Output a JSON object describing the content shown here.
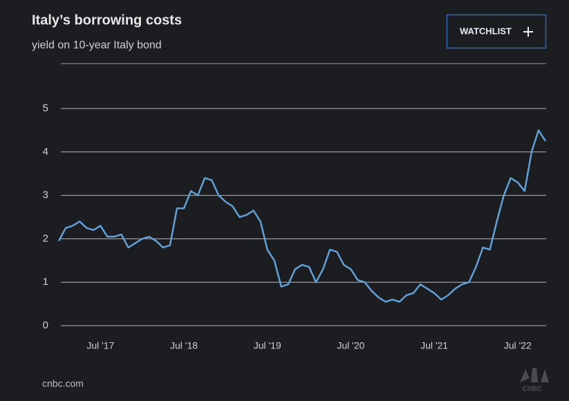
{
  "header": {
    "title": "Italy’s borrowing costs",
    "subtitle": "yield on 10-year Italy bond",
    "button": "WATCHLIST"
  },
  "chart_data": {
    "type": "line",
    "color": "#62a0d8",
    "x": [
      "2017-01",
      "2017-02",
      "2017-03",
      "2017-04",
      "2017-05",
      "2017-06",
      "2017-07",
      "2017-08",
      "2017-09",
      "2017-10",
      "2017-11",
      "2017-12",
      "2018-01",
      "2018-02",
      "2018-03",
      "2018-04",
      "2018-05",
      "2018-06",
      "2018-07",
      "2018-08",
      "2018-09",
      "2018-10",
      "2018-11",
      "2018-12",
      "2019-01",
      "2019-02",
      "2019-03",
      "2019-04",
      "2019-05",
      "2019-06",
      "2019-07",
      "2019-08",
      "2019-09",
      "2019-10",
      "2019-11",
      "2019-12",
      "2020-01",
      "2020-02",
      "2020-03",
      "2020-04",
      "2020-05",
      "2020-06",
      "2020-07",
      "2020-08",
      "2020-09",
      "2020-10",
      "2020-11",
      "2020-12",
      "2021-01",
      "2021-02",
      "2021-03",
      "2021-04",
      "2021-05",
      "2021-06",
      "2021-07",
      "2021-08",
      "2021-09",
      "2021-10",
      "2021-11",
      "2021-12",
      "2022-01",
      "2022-02",
      "2022-03",
      "2022-04",
      "2022-05",
      "2022-06",
      "2022-07",
      "2022-08",
      "2022-09",
      "2022-10",
      "2022-11"
    ],
    "values": [
      1.95,
      2.25,
      2.3,
      2.4,
      2.25,
      2.2,
      2.3,
      2.05,
      2.05,
      2.1,
      1.8,
      1.9,
      2.0,
      2.05,
      1.95,
      1.8,
      1.85,
      2.7,
      2.7,
      3.1,
      3.0,
      3.4,
      3.35,
      3.0,
      2.85,
      2.75,
      2.5,
      2.55,
      2.65,
      2.4,
      1.75,
      1.5,
      0.9,
      0.95,
      1.3,
      1.4,
      1.35,
      1.0,
      1.3,
      1.75,
      1.7,
      1.4,
      1.3,
      1.05,
      1.0,
      0.8,
      0.65,
      0.55,
      0.6,
      0.55,
      0.7,
      0.75,
      0.95,
      0.85,
      0.75,
      0.6,
      0.7,
      0.85,
      0.95,
      1.0,
      1.35,
      1.8,
      1.75,
      2.4,
      3.0,
      3.4,
      3.3,
      3.1,
      4.0,
      4.5,
      4.25
    ],
    "xlim": [
      "2017-01",
      "2022-11"
    ],
    "xticks": [
      {
        "value": "2017-07",
        "label": "Jul '17"
      },
      {
        "value": "2018-07",
        "label": "Jul '18"
      },
      {
        "value": "2019-07",
        "label": "Jul '19"
      },
      {
        "value": "2020-07",
        "label": "Jul '20"
      },
      {
        "value": "2021-07",
        "label": "Jul '21"
      },
      {
        "value": "2022-07",
        "label": "Jul '22"
      }
    ],
    "ylim": [
      0,
      6
    ],
    "yticks": [
      0,
      1,
      2,
      3,
      4,
      5
    ],
    "grid": true
  },
  "footer": {
    "source": "cnbc.com",
    "logo": "CNBC"
  }
}
